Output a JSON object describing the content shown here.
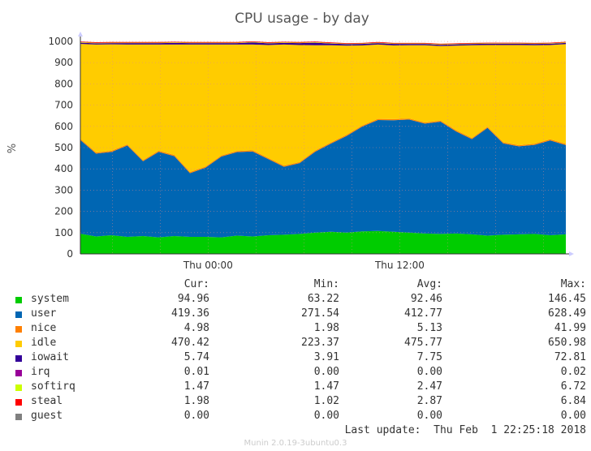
{
  "chart_data": {
    "type": "area",
    "stacked": true,
    "title": "CPU usage - by day",
    "ylabel": "%",
    "ylim": [
      0,
      1000
    ],
    "y_ticks": [
      0,
      100,
      200,
      300,
      400,
      500,
      600,
      700,
      800,
      900,
      1000
    ],
    "x_ticks": [
      {
        "label": "Thu 00:00",
        "hour": 0
      },
      {
        "label": "Thu 12:00",
        "hour": 12
      }
    ],
    "x_range_hours": [
      -8,
      22.4
    ],
    "grid": true,
    "series": [
      {
        "name": "system",
        "color": "#00cc00",
        "values": [
          95,
          82,
          88,
          80,
          84,
          78,
          84,
          80,
          80,
          78,
          86,
          82,
          88,
          90,
          94,
          100,
          104,
          100,
          106,
          108,
          104,
          100,
          96,
          94,
          96,
          92,
          86,
          90,
          92,
          94,
          88,
          92
        ]
      },
      {
        "name": "user",
        "color": "#0066b3",
        "values": [
          441,
          390,
          392,
          430,
          352,
          402,
          376,
          300,
          326,
          380,
          393,
          400,
          358,
          320,
          333,
          381,
          415,
          455,
          493,
          522,
          525,
          532,
          517,
          528,
          480,
          448,
          507,
          430,
          414,
          419,
          446,
          420
        ]
      },
      {
        "name": "nice",
        "color": "#ff8000",
        "values": [
          5,
          5,
          5,
          5,
          5,
          5,
          5,
          5,
          5,
          5,
          5,
          5,
          5,
          5,
          5,
          5,
          5,
          5,
          5,
          5,
          5,
          5,
          5,
          5,
          5,
          5,
          5,
          5,
          5,
          5,
          5,
          5
        ]
      },
      {
        "name": "idle",
        "color": "#ffcc00",
        "values": [
          447,
          508,
          501,
          470,
          544,
          500,
          520,
          600,
          574,
          522,
          501,
          498,
          532,
          570,
          551,
          496,
          458,
          420,
          377,
          350,
          347,
          345,
          364,
          351,
          399,
          437,
          385,
          458,
          472,
          464,
          444,
          470
        ]
      },
      {
        "name": "iowait",
        "color": "#330099",
        "values": [
          6,
          6,
          6,
          7,
          7,
          7,
          8,
          7,
          7,
          7,
          7,
          10,
          8,
          8,
          9,
          12,
          8,
          7,
          7,
          7,
          7,
          6,
          6,
          6,
          6,
          6,
          6,
          6,
          6,
          6,
          6,
          6
        ]
      },
      {
        "name": "irq",
        "color": "#990099",
        "values": [
          0,
          0,
          0,
          0,
          0,
          0,
          0,
          0,
          0,
          0,
          0,
          0,
          0,
          0,
          0,
          0,
          0,
          0,
          0,
          0,
          0,
          0,
          0,
          0,
          0,
          0,
          0,
          0,
          0,
          0,
          0,
          0
        ]
      },
      {
        "name": "softirq",
        "color": "#ccff00",
        "values": [
          2,
          2,
          2,
          2,
          2,
          2,
          2,
          2,
          2,
          2,
          2,
          2,
          2,
          2,
          2,
          2,
          2,
          2,
          2,
          2,
          2,
          2,
          2,
          2,
          2,
          2,
          2,
          2,
          2,
          2,
          2,
          2
        ]
      },
      {
        "name": "steal",
        "color": "#ff0000",
        "values": [
          3,
          3,
          3,
          3,
          3,
          3,
          3,
          3,
          3,
          3,
          3,
          3,
          3,
          3,
          3,
          3,
          3,
          3,
          3,
          3,
          3,
          3,
          3,
          3,
          3,
          3,
          3,
          3,
          3,
          3,
          3,
          3
        ]
      },
      {
        "name": "guest",
        "color": "#808080",
        "values": [
          0,
          0,
          0,
          0,
          0,
          0,
          0,
          0,
          0,
          0,
          0,
          0,
          0,
          0,
          0,
          0,
          0,
          0,
          0,
          0,
          0,
          0,
          0,
          0,
          0,
          0,
          0,
          0,
          0,
          0,
          0,
          0
        ]
      }
    ]
  },
  "legend": {
    "headers": {
      "cur": "Cur:",
      "min": "Min:",
      "avg": "Avg:",
      "max": "Max:"
    },
    "rows": [
      {
        "name": "system",
        "color": "#00cc00",
        "cur": "94.96",
        "min": "63.22",
        "avg": "92.46",
        "max": "146.45"
      },
      {
        "name": "user",
        "color": "#0066b3",
        "cur": "419.36",
        "min": "271.54",
        "avg": "412.77",
        "max": "628.49"
      },
      {
        "name": "nice",
        "color": "#ff8000",
        "cur": "4.98",
        "min": "1.98",
        "avg": "5.13",
        "max": "41.99"
      },
      {
        "name": "idle",
        "color": "#ffcc00",
        "cur": "470.42",
        "min": "223.37",
        "avg": "475.77",
        "max": "650.98"
      },
      {
        "name": "iowait",
        "color": "#330099",
        "cur": "5.74",
        "min": "3.91",
        "avg": "7.75",
        "max": "72.81"
      },
      {
        "name": "irq",
        "color": "#990099",
        "cur": "0.01",
        "min": "0.00",
        "avg": "0.00",
        "max": "0.02"
      },
      {
        "name": "softirq",
        "color": "#ccff00",
        "cur": "1.47",
        "min": "1.47",
        "avg": "2.47",
        "max": "6.72"
      },
      {
        "name": "steal",
        "color": "#ff0000",
        "cur": "1.98",
        "min": "1.02",
        "avg": "2.87",
        "max": "6.84"
      },
      {
        "name": "guest",
        "color": "#808080",
        "cur": "0.00",
        "min": "0.00",
        "avg": "0.00",
        "max": "0.00"
      }
    ],
    "last_update": "Last update:  Thu Feb  1 22:25:18 2018"
  },
  "footer": "Munin 2.0.19-3ubuntu0.3"
}
